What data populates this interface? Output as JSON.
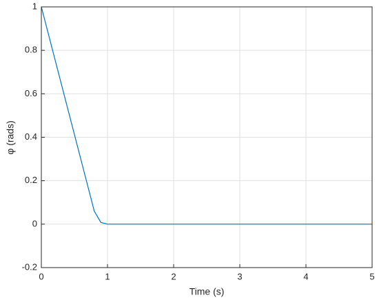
{
  "chart_data": {
    "type": "line",
    "x_label": "Time (s)",
    "y_label": "φ (rads)",
    "x": [
      0,
      0.8,
      0.9,
      1,
      5
    ],
    "series": [
      {
        "color": "#0072bd",
        "values": [
          1,
          0.06,
          0.008,
          0,
          0
        ]
      }
    ],
    "xlim": [
      0,
      5
    ],
    "ylim": [
      -0.2,
      1
    ],
    "xticks": [
      0,
      1,
      2,
      3,
      4,
      5
    ],
    "yticks": [
      -0.2,
      0,
      0.2,
      0.4,
      0.6,
      0.8,
      1
    ],
    "grid": true
  }
}
